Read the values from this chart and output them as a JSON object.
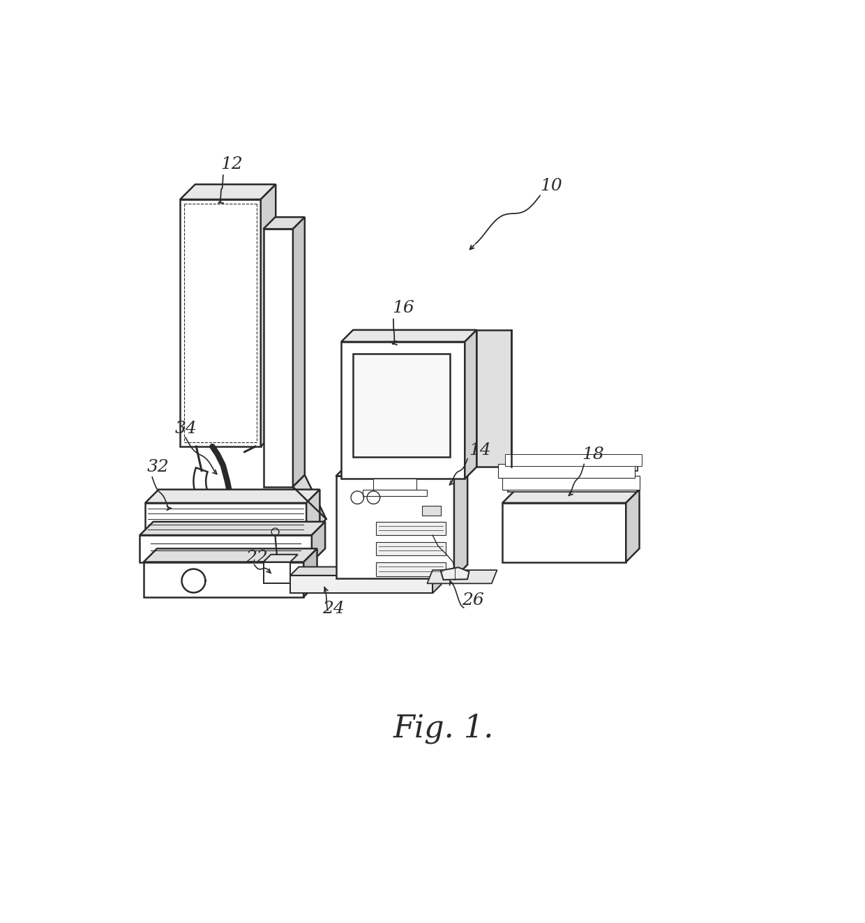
{
  "title": "Fig. 1.",
  "bg_color": "#ffffff",
  "line_color": "#2a2a2a",
  "line_width": 1.8,
  "figsize": [
    12.4,
    13.23
  ],
  "dpi": 100
}
